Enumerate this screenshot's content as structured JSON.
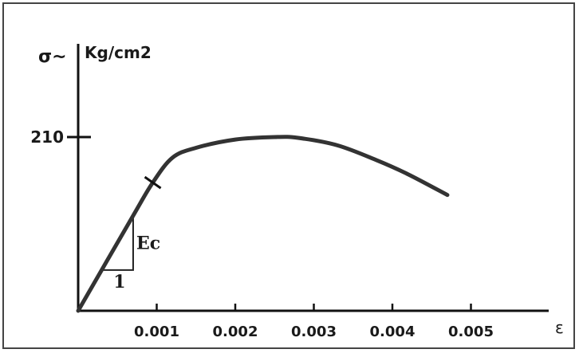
{
  "chart_data": {
    "type": "line",
    "title": "",
    "ylabel_symbol": "σ~",
    "ylabel_unit": "Kg/cm2",
    "xlabel": "ε",
    "y_tick_labels": [
      "210"
    ],
    "y_ticks": [
      210
    ],
    "x_tick_labels": [
      "0.001",
      "0.002",
      "0.003",
      "0.004",
      "0.005"
    ],
    "x_ticks": [
      0.001,
      0.002,
      0.003,
      0.004,
      0.005
    ],
    "xlim": [
      0,
      0.0055
    ],
    "ylim": [
      0,
      280
    ],
    "grid": false,
    "series": [
      {
        "x": [
          0,
          0.0007,
          0.00095,
          0.0012,
          0.0015,
          0.002,
          0.0025,
          0.0028,
          0.0033,
          0.0038,
          0.0042,
          0.0047
        ],
        "y": [
          0,
          115,
          155,
          185,
          197,
          207,
          210,
          209,
          200,
          182,
          165,
          140
        ]
      }
    ],
    "annotations": {
      "slope_label": "Ec",
      "run_label": "1",
      "marked_point": {
        "x": 0.00095,
        "y": 155
      }
    }
  }
}
